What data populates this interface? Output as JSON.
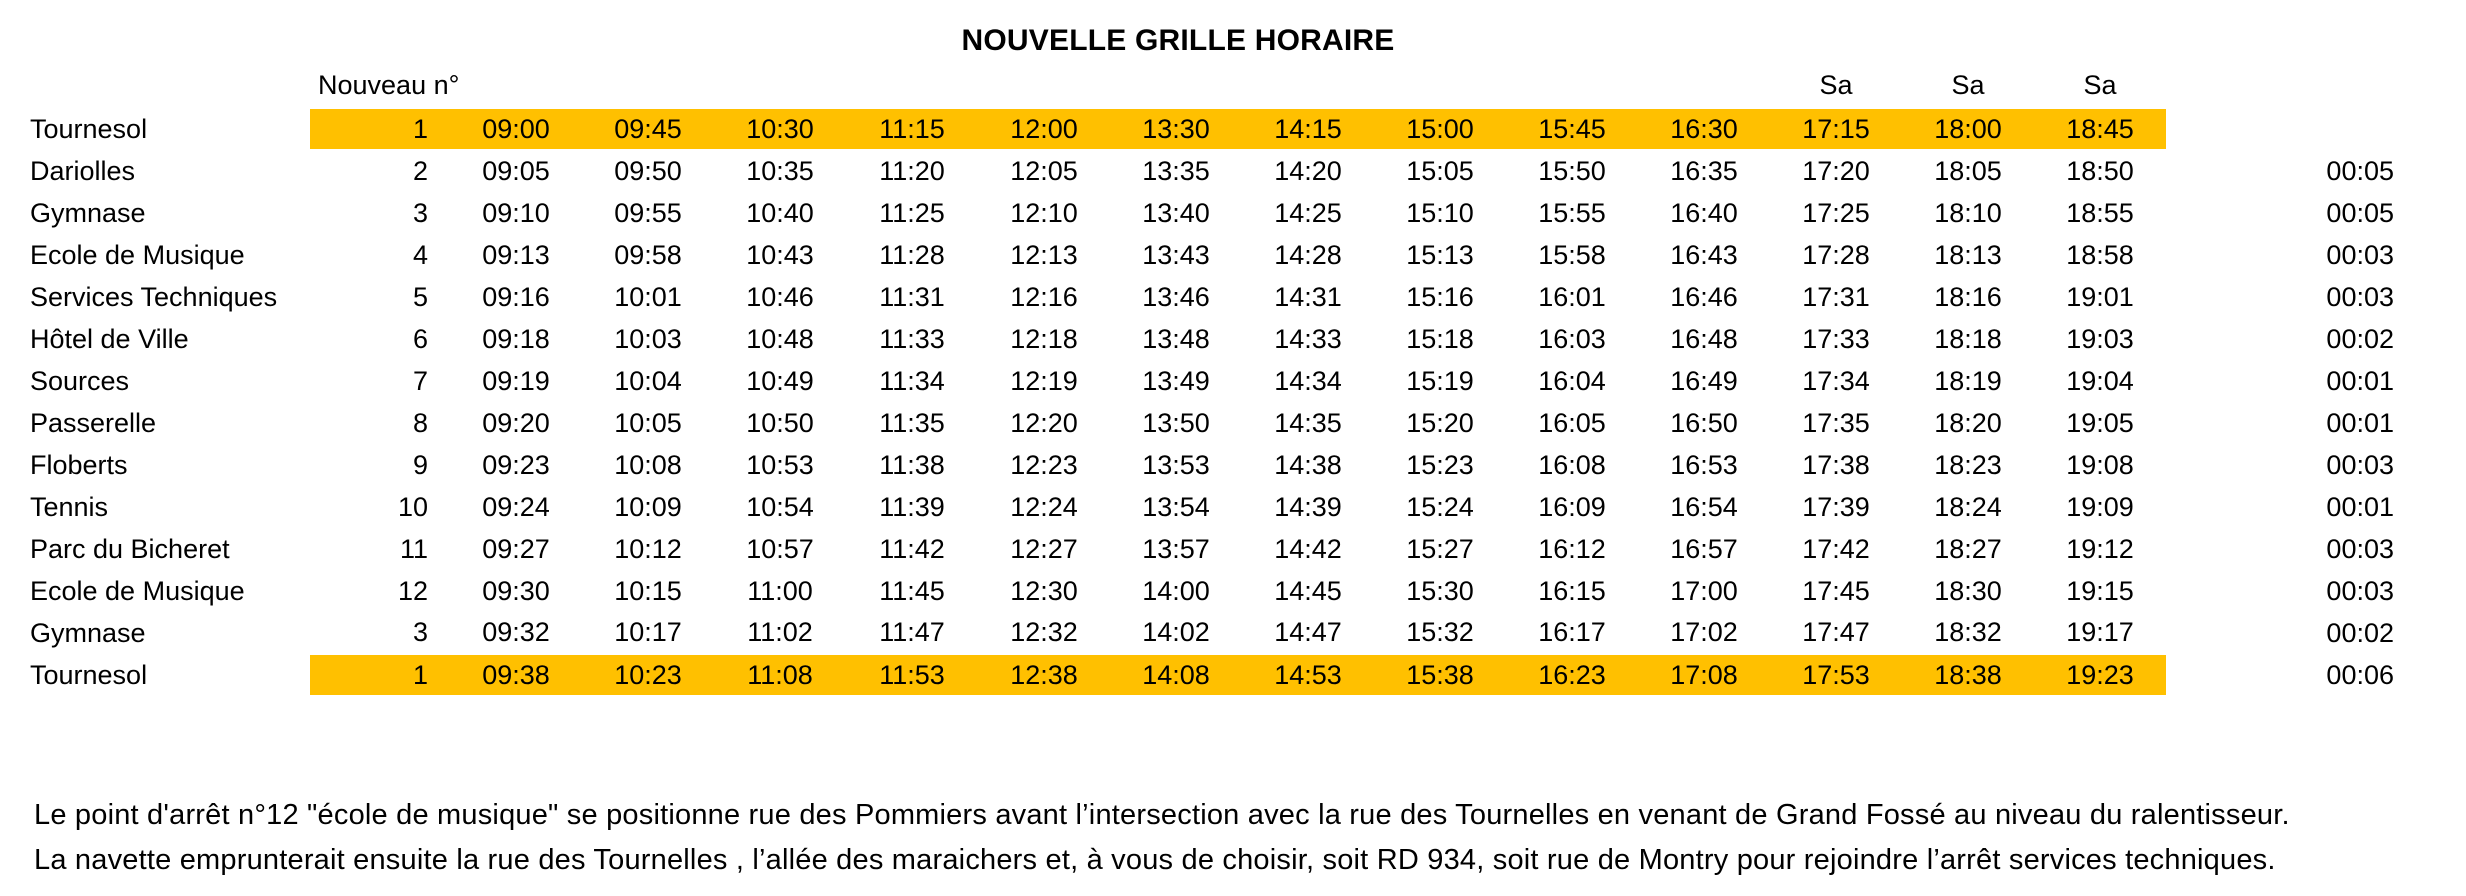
{
  "title": "NOUVELLE GRILLE HORAIRE",
  "table": {
    "number_column_header": "Nouveau n°",
    "saturday_label": "Sa",
    "saturday_columns": [
      10,
      11,
      12
    ],
    "highlight_color": "#FFC000",
    "rows": [
      {
        "stop": "Tournesol",
        "number": "1",
        "highlighted": true,
        "times": [
          "09:00",
          "09:45",
          "10:30",
          "11:15",
          "12:00",
          "13:30",
          "14:15",
          "15:00",
          "15:45",
          "16:30",
          "17:15",
          "18:00",
          "18:45"
        ],
        "interval": ""
      },
      {
        "stop": "Dariolles",
        "number": "2",
        "highlighted": false,
        "times": [
          "09:05",
          "09:50",
          "10:35",
          "11:20",
          "12:05",
          "13:35",
          "14:20",
          "15:05",
          "15:50",
          "16:35",
          "17:20",
          "18:05",
          "18:50"
        ],
        "interval": "00:05"
      },
      {
        "stop": "Gymnase",
        "number": "3",
        "highlighted": false,
        "times": [
          "09:10",
          "09:55",
          "10:40",
          "11:25",
          "12:10",
          "13:40",
          "14:25",
          "15:10",
          "15:55",
          "16:40",
          "17:25",
          "18:10",
          "18:55"
        ],
        "interval": "00:05"
      },
      {
        "stop": "Ecole de Musique",
        "number": "4",
        "highlighted": false,
        "times": [
          "09:13",
          "09:58",
          "10:43",
          "11:28",
          "12:13",
          "13:43",
          "14:28",
          "15:13",
          "15:58",
          "16:43",
          "17:28",
          "18:13",
          "18:58"
        ],
        "interval": "00:03"
      },
      {
        "stop": "Services Techniques",
        "number": "5",
        "highlighted": false,
        "times": [
          "09:16",
          "10:01",
          "10:46",
          "11:31",
          "12:16",
          "13:46",
          "14:31",
          "15:16",
          "16:01",
          "16:46",
          "17:31",
          "18:16",
          "19:01"
        ],
        "interval": "00:03"
      },
      {
        "stop": "Hôtel de Ville",
        "number": "6",
        "highlighted": false,
        "times": [
          "09:18",
          "10:03",
          "10:48",
          "11:33",
          "12:18",
          "13:48",
          "14:33",
          "15:18",
          "16:03",
          "16:48",
          "17:33",
          "18:18",
          "19:03"
        ],
        "interval": "00:02"
      },
      {
        "stop": "Sources",
        "number": "7",
        "highlighted": false,
        "times": [
          "09:19",
          "10:04",
          "10:49",
          "11:34",
          "12:19",
          "13:49",
          "14:34",
          "15:19",
          "16:04",
          "16:49",
          "17:34",
          "18:19",
          "19:04"
        ],
        "interval": "00:01"
      },
      {
        "stop": "Passerelle",
        "number": "8",
        "highlighted": false,
        "times": [
          "09:20",
          "10:05",
          "10:50",
          "11:35",
          "12:20",
          "13:50",
          "14:35",
          "15:20",
          "16:05",
          "16:50",
          "17:35",
          "18:20",
          "19:05"
        ],
        "interval": "00:01"
      },
      {
        "stop": "Floberts",
        "number": "9",
        "highlighted": false,
        "times": [
          "09:23",
          "10:08",
          "10:53",
          "11:38",
          "12:23",
          "13:53",
          "14:38",
          "15:23",
          "16:08",
          "16:53",
          "17:38",
          "18:23",
          "19:08"
        ],
        "interval": "00:03"
      },
      {
        "stop": "Tennis",
        "number": "10",
        "highlighted": false,
        "times": [
          "09:24",
          "10:09",
          "10:54",
          "11:39",
          "12:24",
          "13:54",
          "14:39",
          "15:24",
          "16:09",
          "16:54",
          "17:39",
          "18:24",
          "19:09"
        ],
        "interval": "00:01"
      },
      {
        "stop": "Parc du Bicheret",
        "number": "11",
        "highlighted": false,
        "times": [
          "09:27",
          "10:12",
          "10:57",
          "11:42",
          "12:27",
          "13:57",
          "14:42",
          "15:27",
          "16:12",
          "16:57",
          "17:42",
          "18:27",
          "19:12"
        ],
        "interval": "00:03"
      },
      {
        "stop": "Ecole de Musique",
        "number": "12",
        "highlighted": false,
        "times": [
          "09:30",
          "10:15",
          "11:00",
          "11:45",
          "12:30",
          "14:00",
          "14:45",
          "15:30",
          "16:15",
          "17:00",
          "17:45",
          "18:30",
          "19:15"
        ],
        "interval": "00:03"
      },
      {
        "stop": "Gymnase",
        "number": "3",
        "highlighted": false,
        "times": [
          "09:32",
          "10:17",
          "11:02",
          "11:47",
          "12:32",
          "14:02",
          "14:47",
          "15:32",
          "16:17",
          "17:02",
          "17:47",
          "18:32",
          "19:17"
        ],
        "interval": "00:02"
      },
      {
        "stop": "Tournesol",
        "number": "1",
        "highlighted": true,
        "times": [
          "09:38",
          "10:23",
          "11:08",
          "11:53",
          "12:38",
          "14:08",
          "14:53",
          "15:38",
          "16:23",
          "17:08",
          "17:53",
          "18:38",
          "19:23"
        ],
        "interval": "00:06"
      }
    ]
  },
  "notes": [
    "Le point d'arrêt n°12 \"école de musique\" se positionne rue des Pommiers avant l’intersection avec la rue des Tournelles en venant de Grand Fossé au niveau du ralentisseur.",
    "La navette emprunterait ensuite la rue des Tournelles , l’allée des maraichers et, à vous de choisir, soit RD 934, soit rue de Montry pour rejoindre l’arrêt services techniques."
  ]
}
